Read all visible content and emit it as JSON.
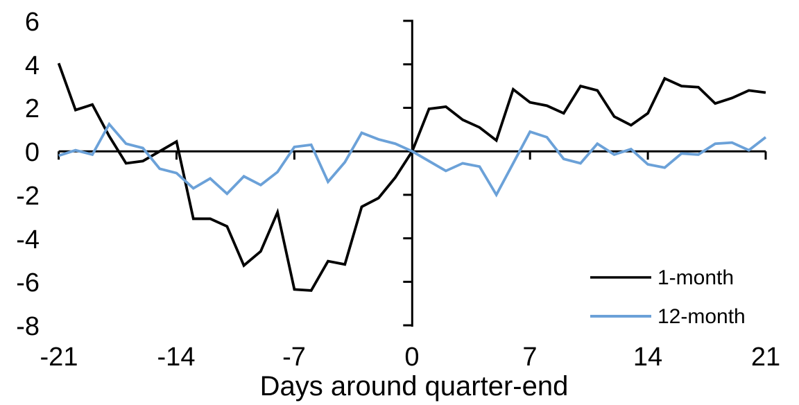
{
  "chart_data": {
    "type": "line",
    "title": "",
    "xlabel": "Days around quarter-end",
    "ylabel": "",
    "grid": false,
    "legend_position": "bottom-right",
    "x_axis": {
      "range": [
        -21,
        21
      ],
      "ticks": [
        -21,
        -14,
        -7,
        0,
        7,
        14,
        21
      ]
    },
    "y_axis": {
      "range": [
        -8,
        6
      ],
      "ticks": [
        6,
        4,
        2,
        0,
        -2,
        -4,
        -6,
        -8
      ]
    },
    "x": [
      -21,
      -20,
      -19,
      -18,
      -17,
      -16,
      -15,
      -14,
      -13,
      -12,
      -11,
      -10,
      -9,
      -8,
      -7,
      -6,
      -5,
      -4,
      -3,
      -2,
      -1,
      0,
      1,
      2,
      3,
      4,
      5,
      6,
      7,
      8,
      9,
      10,
      11,
      12,
      13,
      14,
      15,
      16,
      17,
      18,
      19,
      20,
      21
    ],
    "series": [
      {
        "name": "1-month",
        "color": "#000000",
        "values": [
          4.05,
          1.9,
          2.15,
          0.7,
          -0.55,
          -0.45,
          0.0,
          0.45,
          -3.1,
          -3.1,
          -3.45,
          -5.25,
          -4.6,
          -2.8,
          -6.35,
          -6.4,
          -5.05,
          -5.2,
          -2.55,
          -2.15,
          -1.2,
          0.0,
          1.95,
          2.05,
          1.45,
          1.1,
          0.5,
          2.85,
          2.25,
          2.1,
          1.75,
          3.0,
          2.8,
          1.6,
          1.2,
          1.75,
          3.35,
          3.0,
          2.95,
          2.2,
          2.45,
          2.8,
          2.7
        ]
      },
      {
        "name": "12-month",
        "color": "#6BA1D8",
        "values": [
          -0.2,
          0.05,
          -0.15,
          1.25,
          0.35,
          0.15,
          -0.8,
          -1.0,
          -1.7,
          -1.25,
          -1.95,
          -1.15,
          -1.55,
          -0.95,
          0.2,
          0.3,
          -1.4,
          -0.5,
          0.85,
          0.55,
          0.35,
          0.0,
          -0.45,
          -0.9,
          -0.55,
          -0.7,
          -2.0,
          -0.55,
          0.9,
          0.65,
          -0.35,
          -0.55,
          0.35,
          -0.15,
          0.1,
          -0.6,
          -0.75,
          -0.1,
          -0.15,
          0.35,
          0.4,
          0.05,
          0.65
        ]
      }
    ]
  }
}
